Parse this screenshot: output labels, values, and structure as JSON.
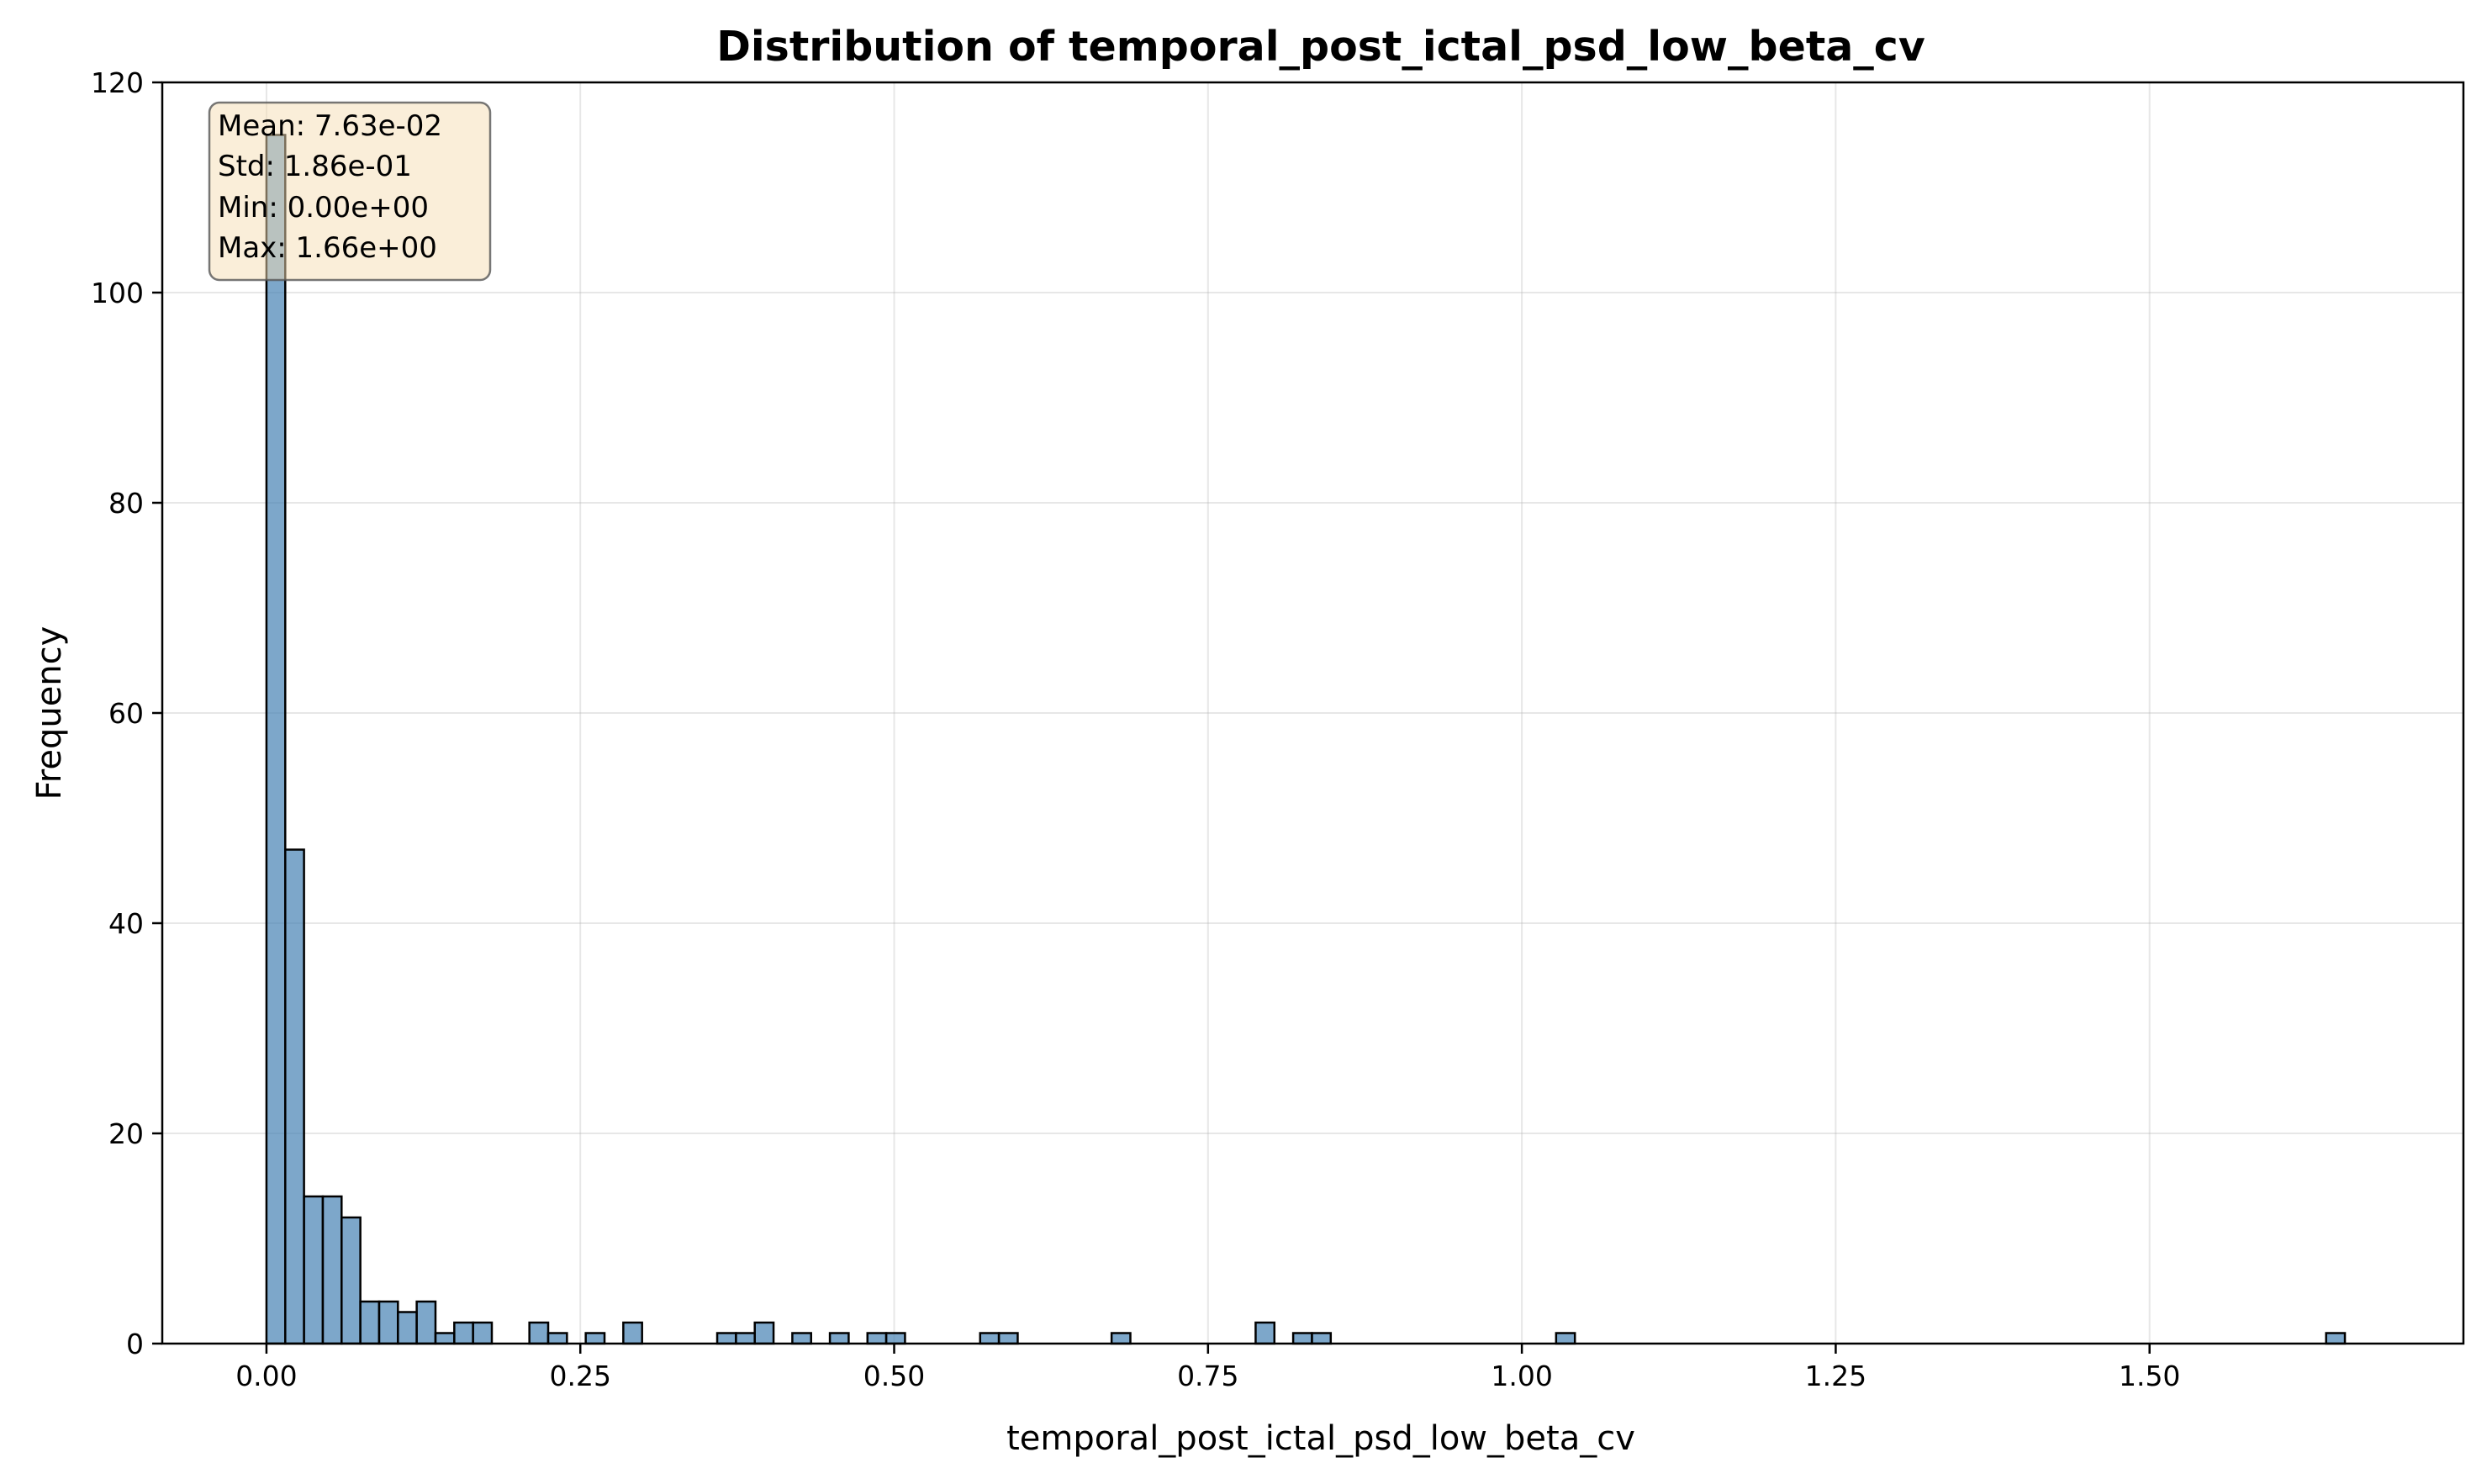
{
  "chart_data": {
    "type": "bar",
    "title": "Distribution of temporal_post_ictal_psd_low_beta_cv",
    "xlabel": "temporal_post_ictal_psd_low_beta_cv",
    "ylabel": "Frequency",
    "xlim": [
      -0.083,
      1.75
    ],
    "ylim": [
      0,
      120
    ],
    "xticks": [
      0.0,
      0.25,
      0.5,
      0.75,
      1.0,
      1.25,
      1.5
    ],
    "xtick_labels": [
      "0.00",
      "0.25",
      "0.50",
      "0.75",
      "1.00",
      "1.25",
      "1.50"
    ],
    "yticks": [
      0,
      20,
      40,
      60,
      80,
      100,
      120
    ],
    "ytick_labels": [
      "0",
      "20",
      "40",
      "60",
      "80",
      "100",
      "120"
    ],
    "grid": true,
    "bar_color": "#4682b4",
    "bin_width": 0.01496,
    "bins": [
      {
        "x": 0.0,
        "count": 115
      },
      {
        "x": 0.01496,
        "count": 47
      },
      {
        "x": 0.02992,
        "count": 14
      },
      {
        "x": 0.04488,
        "count": 14
      },
      {
        "x": 0.05984,
        "count": 12
      },
      {
        "x": 0.0748,
        "count": 4
      },
      {
        "x": 0.08976,
        "count": 4
      },
      {
        "x": 0.10472,
        "count": 3
      },
      {
        "x": 0.11968,
        "count": 4
      },
      {
        "x": 0.13464,
        "count": 1
      },
      {
        "x": 0.1496,
        "count": 2
      },
      {
        "x": 0.16456,
        "count": 2
      },
      {
        "x": 0.20944,
        "count": 2
      },
      {
        "x": 0.2244,
        "count": 1
      },
      {
        "x": 0.25432,
        "count": 1
      },
      {
        "x": 0.28424,
        "count": 2
      },
      {
        "x": 0.35904,
        "count": 1
      },
      {
        "x": 0.374,
        "count": 1
      },
      {
        "x": 0.38896,
        "count": 2
      },
      {
        "x": 0.41888,
        "count": 1
      },
      {
        "x": 0.4488,
        "count": 1
      },
      {
        "x": 0.47872,
        "count": 1
      },
      {
        "x": 0.49368,
        "count": 1
      },
      {
        "x": 0.56848,
        "count": 1
      },
      {
        "x": 0.58344,
        "count": 1
      },
      {
        "x": 0.6732,
        "count": 1
      },
      {
        "x": 0.78792,
        "count": 2
      },
      {
        "x": 0.81784,
        "count": 1
      },
      {
        "x": 0.8328,
        "count": 1
      },
      {
        "x": 1.02728,
        "count": 1
      },
      {
        "x": 1.64064,
        "count": 1
      }
    ],
    "stats": {
      "mean": "Mean: 7.63e-02",
      "std": "Std: 1.86e-01",
      "min": "Min: 0.00e+00",
      "max": "Max: 1.66e+00"
    },
    "stats_box": {
      "placement": "top-left",
      "fill": "#f5deb3",
      "edge": "#555555"
    }
  }
}
